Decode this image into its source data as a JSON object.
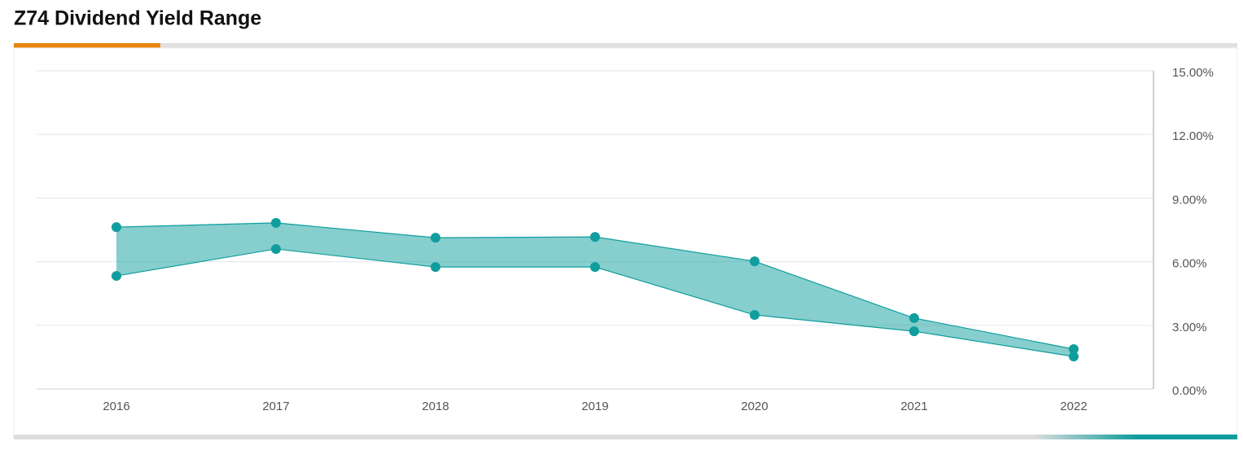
{
  "chart_data": {
    "type": "arearange",
    "title": "Z74 Dividend Yield Range",
    "categories": [
      "2016",
      "2017",
      "2018",
      "2019",
      "2020",
      "2021",
      "2022"
    ],
    "high": [
      7.63,
      7.83,
      7.13,
      7.17,
      6.02,
      3.34,
      1.88
    ],
    "low": [
      5.33,
      6.6,
      5.75,
      5.75,
      3.49,
      2.72,
      1.53
    ],
    "color": "#109d9d",
    "ylim": [
      0,
      15
    ],
    "yticks": [
      {
        "value": 0,
        "label": "0.00%"
      },
      {
        "value": 3,
        "label": "3.00%"
      },
      {
        "value": 6,
        "label": "6.00%"
      },
      {
        "value": 9,
        "label": "9.00%"
      },
      {
        "value": 12,
        "label": "12.00%"
      },
      {
        "value": 15,
        "label": "15.00%"
      }
    ],
    "grid": true
  }
}
